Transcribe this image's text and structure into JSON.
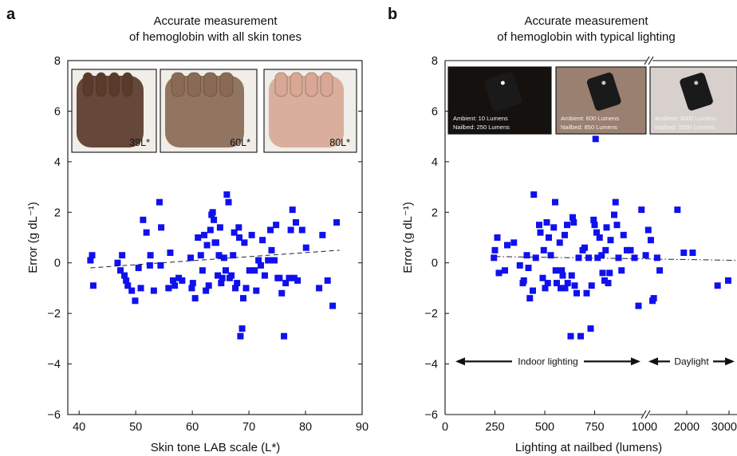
{
  "chart_data": [
    {
      "panel": "a",
      "type": "scatter",
      "title": "Accurate measurement\nof hemoglobin with all skin tones",
      "xlabel": "Skin tone LAB scale (L*)",
      "ylabel": "Error (g dL⁻¹)",
      "xlim": [
        38,
        90
      ],
      "ylim": [
        -6,
        8
      ],
      "xticks": [
        40,
        50,
        60,
        70,
        80,
        90
      ],
      "yticks": [
        -6,
        -4,
        -2,
        0,
        2,
        4,
        6,
        8
      ],
      "ytick_labels": [
        "−6",
        "−4",
        "−2",
        "0",
        "2",
        "4",
        "6",
        "8"
      ],
      "marker_color": "#1010ee",
      "trendline": {
        "style": "dashed",
        "x": [
          42,
          86
        ],
        "y": [
          -0.2,
          0.5
        ]
      },
      "photo_insets": [
        {
          "label": "39L*",
          "skin": "#5a3a2a"
        },
        {
          "label": "60L*",
          "skin": "#8a6a55"
        },
        {
          "label": "80L*",
          "skin": "#d8a895"
        }
      ],
      "points": [
        [
          42,
          0.1
        ],
        [
          42.3,
          0.3
        ],
        [
          42.5,
          -0.9
        ],
        [
          46.8,
          0
        ],
        [
          47.3,
          -0.3
        ],
        [
          47.6,
          0.3
        ],
        [
          48,
          -0.5
        ],
        [
          48.3,
          -0.7
        ],
        [
          48.6,
          -0.9
        ],
        [
          49.3,
          -1.1
        ],
        [
          49.9,
          -1.5
        ],
        [
          50.5,
          -0.2
        ],
        [
          50.9,
          -1.0
        ],
        [
          51.3,
          1.7
        ],
        [
          51.9,
          1.2
        ],
        [
          52.5,
          -0.1
        ],
        [
          52.6,
          0.3
        ],
        [
          53.2,
          -1.1
        ],
        [
          54.2,
          2.4
        ],
        [
          54.5,
          1.4
        ],
        [
          54.4,
          -0.1
        ],
        [
          55.8,
          -1.0
        ],
        [
          56.1,
          0.4
        ],
        [
          56.6,
          -0.7
        ],
        [
          56.9,
          -0.9
        ],
        [
          57.6,
          -0.6
        ],
        [
          58.2,
          -0.7
        ],
        [
          59.7,
          0.2
        ],
        [
          59.9,
          -1.0
        ],
        [
          60.1,
          -0.8
        ],
        [
          60.5,
          -1.4
        ],
        [
          61.0,
          1.0
        ],
        [
          61.5,
          0.3
        ],
        [
          61.8,
          -0.3
        ],
        [
          62.1,
          1.1
        ],
        [
          62.4,
          -1.1
        ],
        [
          62.6,
          0.7
        ],
        [
          62.9,
          -0.9
        ],
        [
          63.2,
          1.3
        ],
        [
          63.4,
          1.9
        ],
        [
          63.6,
          2.0
        ],
        [
          63.8,
          1.7
        ],
        [
          64.0,
          0.8
        ],
        [
          64.2,
          0.8
        ],
        [
          64.5,
          -0.5
        ],
        [
          64.7,
          0.3
        ],
        [
          64.9,
          1.4
        ],
        [
          65.1,
          -0.8
        ],
        [
          65.3,
          -0.6
        ],
        [
          65.6,
          0.2
        ],
        [
          65.9,
          -0.3
        ],
        [
          66.1,
          2.7
        ],
        [
          66.4,
          2.4
        ],
        [
          66.6,
          -0.6
        ],
        [
          66.9,
          -0.5
        ],
        [
          67.2,
          0.3
        ],
        [
          67.4,
          1.2
        ],
        [
          67.6,
          -1.0
        ],
        [
          67.9,
          -0.8
        ],
        [
          68.2,
          1.4
        ],
        [
          68.3,
          1.0
        ],
        [
          68.5,
          -2.9
        ],
        [
          68.8,
          -2.6
        ],
        [
          69.0,
          -1.4
        ],
        [
          69.2,
          0.8
        ],
        [
          69.5,
          -1.0
        ],
        [
          70.1,
          -0.3
        ],
        [
          70.5,
          1.1
        ],
        [
          71.0,
          -0.3
        ],
        [
          71.3,
          -1.1
        ],
        [
          71.7,
          0.1
        ],
        [
          72.1,
          -0.1
        ],
        [
          72.4,
          0.9
        ],
        [
          72.8,
          -0.5
        ],
        [
          73.4,
          0.1
        ],
        [
          73.8,
          1.3
        ],
        [
          74.0,
          0.5
        ],
        [
          74.5,
          0.1
        ],
        [
          74.8,
          1.5
        ],
        [
          75.1,
          -0.6
        ],
        [
          75.4,
          -0.6
        ],
        [
          75.8,
          -1.2
        ],
        [
          76.2,
          -2.9
        ],
        [
          76.5,
          -0.8
        ],
        [
          77.1,
          -0.6
        ],
        [
          77.4,
          1.3
        ],
        [
          77.7,
          2.1
        ],
        [
          78.0,
          -0.6
        ],
        [
          78.3,
          1.6
        ],
        [
          78.6,
          -0.7
        ],
        [
          79.4,
          1.3
        ],
        [
          80.1,
          0.6
        ],
        [
          82.4,
          -1.0
        ],
        [
          83.0,
          1.1
        ],
        [
          83.9,
          -0.7
        ],
        [
          84.8,
          -1.7
        ],
        [
          85.5,
          1.6
        ]
      ]
    },
    {
      "panel": "b",
      "type": "scatter",
      "title": "Accurate measurement\nof hemoglobin with typical lighting",
      "xlabel": "Lighting at nailbed (lumens)",
      "ylabel": "Error (g dL⁻¹)",
      "xlim": [
        0,
        3000
      ],
      "ylim": [
        -6,
        8
      ],
      "x_axis_break": 1000,
      "x_scale_segments": [
        {
          "from": 0,
          "to": 1000,
          "ticks": [
            0,
            250,
            500,
            750,
            1000
          ]
        },
        {
          "from": 1000,
          "to": 3000,
          "ticks": [
            2000,
            3000
          ]
        }
      ],
      "yticks": [
        -6,
        -4,
        -2,
        0,
        2,
        4,
        6,
        8
      ],
      "ytick_labels": [
        "−6",
        "−4",
        "−2",
        "0",
        "2",
        "4",
        "6",
        "8"
      ],
      "marker_color": "#1010ee",
      "trendline": {
        "style": "dash-dot",
        "x": [
          250,
          3000
        ],
        "y": [
          0.25,
          0.1
        ]
      },
      "regions": [
        {
          "label": "Indoor lighting",
          "from": 50,
          "to": 950
        },
        {
          "label": "Daylight",
          "from": 1030,
          "to": 3000
        }
      ],
      "photo_insets": [
        {
          "ambient": "Ambient: 10 Lumens",
          "nailbed": "Nailbed: 250 Lumens",
          "bg": "#15110f"
        },
        {
          "ambient": "Ambient: 600 Lumens",
          "nailbed": "Nailbed: 850 Lumens",
          "bg": "#9a8070"
        },
        {
          "ambient": "Ambient: 3000 Lumens",
          "nailbed": "Nailbed: 3200 Lumens",
          "bg": "#d8d0cc"
        }
      ],
      "points": [
        [
          245,
          0.2
        ],
        [
          250,
          0.5
        ],
        [
          262,
          1.0
        ],
        [
          270,
          -0.4
        ],
        [
          300,
          -0.3
        ],
        [
          312,
          0.7
        ],
        [
          345,
          0.8
        ],
        [
          375,
          -0.1
        ],
        [
          390,
          -0.8
        ],
        [
          395,
          -0.7
        ],
        [
          410,
          0.3
        ],
        [
          418,
          -0.2
        ],
        [
          425,
          -1.4
        ],
        [
          440,
          -1.1
        ],
        [
          445,
          2.7
        ],
        [
          455,
          0.2
        ],
        [
          472,
          1.5
        ],
        [
          478,
          1.2
        ],
        [
          490,
          -0.6
        ],
        [
          495,
          0.5
        ],
        [
          502,
          -1.0
        ],
        [
          510,
          1.6
        ],
        [
          515,
          -0.8
        ],
        [
          520,
          1.0
        ],
        [
          530,
          0.3
        ],
        [
          545,
          1.4
        ],
        [
          552,
          2.4
        ],
        [
          555,
          -0.3
        ],
        [
          560,
          -0.8
        ],
        [
          575,
          0.8
        ],
        [
          580,
          -1.0
        ],
        [
          585,
          -0.3
        ],
        [
          590,
          -0.5
        ],
        [
          600,
          1.1
        ],
        [
          602,
          -1.0
        ],
        [
          612,
          1.5
        ],
        [
          615,
          -0.8
        ],
        [
          630,
          -2.9
        ],
        [
          635,
          -0.5
        ],
        [
          640,
          1.8
        ],
        [
          645,
          1.6
        ],
        [
          650,
          -0.9
        ],
        [
          660,
          -1.2
        ],
        [
          670,
          0.2
        ],
        [
          680,
          -2.9
        ],
        [
          690,
          0.5
        ],
        [
          700,
          0.6
        ],
        [
          710,
          -1.2
        ],
        [
          720,
          0.2
        ],
        [
          730,
          -2.6
        ],
        [
          735,
          -0.9
        ],
        [
          745,
          1.7
        ],
        [
          750,
          1.5
        ],
        [
          755,
          4.9
        ],
        [
          760,
          1.2
        ],
        [
          765,
          0.2
        ],
        [
          775,
          1.0
        ],
        [
          785,
          0.3
        ],
        [
          790,
          -0.4
        ],
        [
          800,
          -0.7
        ],
        [
          805,
          0.5
        ],
        [
          810,
          1.4
        ],
        [
          818,
          -0.8
        ],
        [
          825,
          -0.4
        ],
        [
          830,
          0.9
        ],
        [
          848,
          1.9
        ],
        [
          855,
          2.4
        ],
        [
          862,
          1.5
        ],
        [
          870,
          0.2
        ],
        [
          885,
          -0.3
        ],
        [
          895,
          1.1
        ],
        [
          912,
          0.5
        ],
        [
          930,
          0.5
        ],
        [
          950,
          0.2
        ],
        [
          970,
          -1.7
        ],
        [
          985,
          2.1
        ],
        [
          1030,
          0.3
        ],
        [
          1090,
          1.3
        ],
        [
          1150,
          0.9
        ],
        [
          1190,
          -1.5
        ],
        [
          1220,
          -1.4
        ],
        [
          1300,
          0.2
        ],
        [
          1360,
          -0.3
        ],
        [
          1780,
          2.1
        ],
        [
          1930,
          0.4
        ],
        [
          2140,
          0.4
        ],
        [
          2730,
          -0.9
        ],
        [
          2980,
          -0.7
        ]
      ]
    }
  ],
  "panel_letters": {
    "a": "a",
    "b": "b"
  }
}
